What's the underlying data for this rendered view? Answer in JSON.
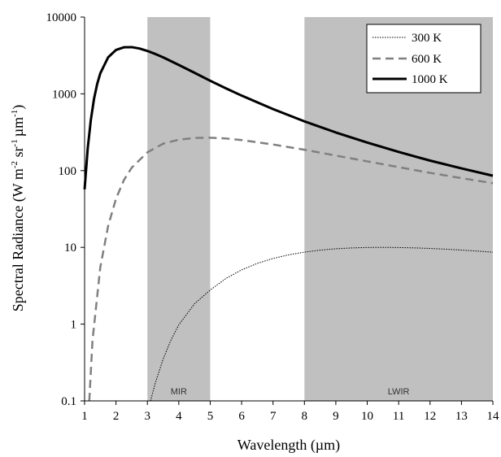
{
  "chart_data": {
    "type": "line",
    "title": "",
    "xlabel": "Wavelength (µm)",
    "ylabel_parts": [
      "Spectral Radiance (W m",
      "-2",
      " sr",
      "-1",
      "µm",
      "-1",
      ")"
    ],
    "xlim": [
      1,
      14
    ],
    "ylim": [
      0.1,
      10000
    ],
    "yscale": "log",
    "grid": false,
    "legend_position": "top-right",
    "x_ticks": [
      1,
      2,
      3,
      4,
      5,
      6,
      7,
      8,
      9,
      10,
      11,
      12,
      13,
      14
    ],
    "y_ticks": [
      0.1,
      1,
      10,
      100,
      1000,
      10000
    ],
    "y_tick_labels": [
      "0.1",
      "1",
      "10",
      "100",
      "1000",
      "10000"
    ],
    "shaded_bands": [
      {
        "label": "MIR",
        "x_range": [
          3,
          5
        ]
      },
      {
        "label": "LWIR",
        "x_range": [
          8,
          14
        ]
      }
    ],
    "series": [
      {
        "name": "300 K",
        "style": "dotted",
        "color": "#000000",
        "x": [
          3.1,
          3.25,
          3.5,
          3.75,
          4.0,
          4.5,
          5.0,
          5.5,
          6.0,
          6.5,
          7.0,
          7.5,
          8.0,
          8.5,
          9.0,
          9.5,
          10.0,
          10.5,
          11.0,
          11.5,
          12.0,
          12.5,
          13.0,
          13.5,
          14.0
        ],
        "y": [
          0.1,
          0.17,
          0.35,
          0.62,
          0.98,
          1.84,
          2.78,
          3.94,
          5.09,
          6.18,
          7.17,
          8.0,
          8.67,
          9.2,
          9.58,
          9.83,
          9.96,
          10.0,
          9.95,
          9.85,
          9.68,
          9.47,
          9.22,
          8.95,
          8.65
        ]
      },
      {
        "name": "600 K",
        "style": "dashed",
        "color": "#808080",
        "x": [
          1.15,
          1.25,
          1.5,
          1.75,
          2.0,
          2.25,
          2.5,
          3.0,
          3.5,
          4.0,
          4.5,
          5.0,
          5.5,
          6.0,
          7.0,
          8.0,
          9.0,
          10.0,
          11.0,
          12.0,
          13.0,
          14.0
        ],
        "y": [
          0.1,
          0.6,
          5.5,
          19,
          43,
          75,
          109,
          173,
          224,
          253,
          266,
          268,
          262,
          250,
          219,
          187,
          157,
          132,
          111,
          93.5,
          79.8,
          68.6
        ]
      },
      {
        "name": "1000 K",
        "style": "solid",
        "color": "#000000",
        "x": [
          1.0,
          1.1,
          1.2,
          1.3,
          1.4,
          1.5,
          1.75,
          2.0,
          2.25,
          2.5,
          2.75,
          3.0,
          3.25,
          3.5,
          4.0,
          4.5,
          5.0,
          5.5,
          6.0,
          7.0,
          8.0,
          9.0,
          10.0,
          11.0,
          12.0,
          13.0,
          14.0
        ],
        "y": [
          57,
          195,
          460,
          857,
          1340,
          1850,
          2990,
          3730,
          4040,
          4060,
          3890,
          3620,
          3310,
          2990,
          2380,
          1880,
          1480,
          1180,
          949,
          633,
          438,
          314,
          232,
          175,
          135,
          107,
          85.7
        ]
      }
    ]
  }
}
